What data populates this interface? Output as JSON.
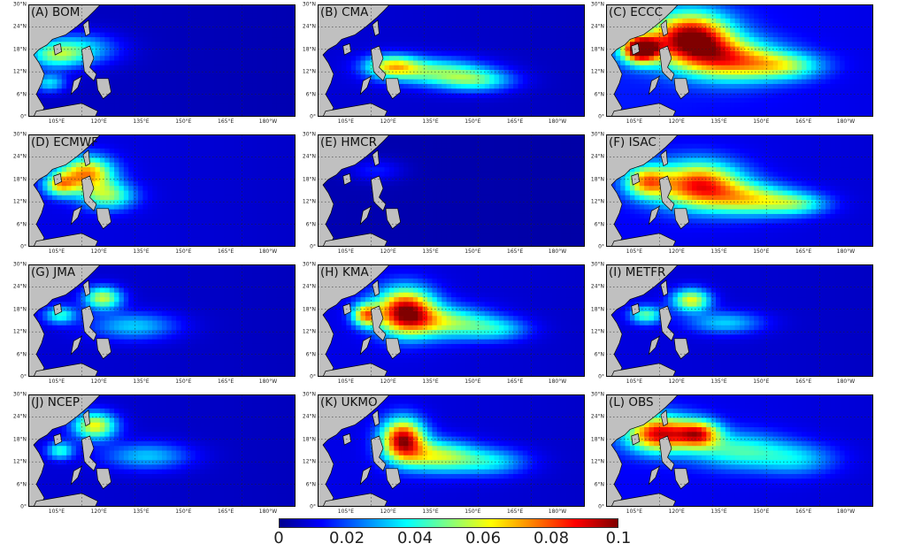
{
  "panels": [
    {
      "label": "(A) BOM",
      "blobs": [
        [
          0.1,
          0.45,
          0.1,
          0.12,
          0.35
        ],
        [
          0.2,
          0.4,
          0.14,
          0.14,
          0.3
        ],
        [
          0.08,
          0.7,
          0.06,
          0.08,
          0.3
        ]
      ],
      "bg": 0.06
    },
    {
      "label": "(B) CMA",
      "blobs": [
        [
          0.28,
          0.55,
          0.1,
          0.1,
          0.55
        ],
        [
          0.45,
          0.6,
          0.18,
          0.12,
          0.45
        ],
        [
          0.6,
          0.68,
          0.14,
          0.1,
          0.4
        ]
      ],
      "bg": 0.08
    },
    {
      "label": "(C) ECCC",
      "blobs": [
        [
          0.13,
          0.4,
          0.07,
          0.12,
          1.0
        ],
        [
          0.32,
          0.3,
          0.15,
          0.22,
          1.0
        ],
        [
          0.48,
          0.5,
          0.18,
          0.18,
          0.7
        ],
        [
          0.68,
          0.55,
          0.14,
          0.12,
          0.45
        ]
      ],
      "bg": 0.15
    },
    {
      "label": "(D) ECMWF",
      "blobs": [
        [
          0.22,
          0.35,
          0.1,
          0.15,
          0.7
        ],
        [
          0.12,
          0.45,
          0.06,
          0.1,
          0.5
        ],
        [
          0.3,
          0.55,
          0.1,
          0.12,
          0.45
        ]
      ],
      "bg": 0.1
    },
    {
      "label": "(E) HMCR",
      "blobs": [
        [
          0.22,
          0.32,
          0.1,
          0.1,
          0.12
        ]
      ],
      "bg": 0.04
    },
    {
      "label": "(F) ISAC",
      "blobs": [
        [
          0.15,
          0.42,
          0.08,
          0.14,
          0.55
        ],
        [
          0.35,
          0.45,
          0.16,
          0.2,
          0.85
        ],
        [
          0.55,
          0.58,
          0.16,
          0.14,
          0.55
        ],
        [
          0.72,
          0.62,
          0.12,
          0.1,
          0.4
        ]
      ],
      "bg": 0.12
    },
    {
      "label": "(G) JMA",
      "blobs": [
        [
          0.28,
          0.3,
          0.07,
          0.1,
          0.55
        ],
        [
          0.12,
          0.45,
          0.06,
          0.08,
          0.35
        ],
        [
          0.4,
          0.55,
          0.16,
          0.12,
          0.3
        ]
      ],
      "bg": 0.08
    },
    {
      "label": "(H) KMA",
      "blobs": [
        [
          0.33,
          0.42,
          0.11,
          0.2,
          1.0
        ],
        [
          0.18,
          0.45,
          0.05,
          0.1,
          0.6
        ],
        [
          0.5,
          0.52,
          0.16,
          0.14,
          0.5
        ],
        [
          0.68,
          0.58,
          0.12,
          0.1,
          0.3
        ]
      ],
      "bg": 0.1
    },
    {
      "label": "(I) METFR",
      "blobs": [
        [
          0.32,
          0.32,
          0.07,
          0.1,
          0.6
        ],
        [
          0.15,
          0.45,
          0.06,
          0.08,
          0.4
        ],
        [
          0.45,
          0.52,
          0.14,
          0.1,
          0.3
        ]
      ],
      "bg": 0.09
    },
    {
      "label": "(J) NCEP",
      "blobs": [
        [
          0.25,
          0.28,
          0.08,
          0.12,
          0.6
        ],
        [
          0.12,
          0.5,
          0.05,
          0.08,
          0.35
        ],
        [
          0.45,
          0.55,
          0.16,
          0.12,
          0.3
        ]
      ],
      "bg": 0.08
    },
    {
      "label": "(K) UKMO",
      "blobs": [
        [
          0.32,
          0.4,
          0.08,
          0.18,
          0.95
        ],
        [
          0.45,
          0.55,
          0.14,
          0.14,
          0.55
        ],
        [
          0.65,
          0.6,
          0.14,
          0.12,
          0.35
        ]
      ],
      "bg": 0.1
    },
    {
      "label": "(L) OBS",
      "blobs": [
        [
          0.2,
          0.35,
          0.12,
          0.16,
          0.85
        ],
        [
          0.35,
          0.35,
          0.08,
          0.12,
          0.7
        ],
        [
          0.5,
          0.5,
          0.18,
          0.16,
          0.4
        ],
        [
          0.72,
          0.58,
          0.15,
          0.14,
          0.3
        ]
      ],
      "bg": 0.12
    }
  ],
  "axes": {
    "lat_ticks": [
      "30°N",
      "24°N",
      "18°N",
      "12°N",
      "6°N",
      "0°"
    ],
    "lon_ticks": [
      "105°E",
      "120°E",
      "135°E",
      "150°E",
      "165°E",
      "180°W"
    ]
  },
  "colorbar": {
    "ticks": [
      "0",
      "0.02",
      "0.04",
      "0.06",
      "0.08",
      "0.1"
    ],
    "stops": [
      "#00008f",
      "#0000ff",
      "#0080ff",
      "#00ffff",
      "#80ff80",
      "#ffff00",
      "#ff8000",
      "#ff0000",
      "#800000"
    ]
  },
  "colors": {
    "land": "#c0c0c0",
    "coast": "#000000"
  }
}
